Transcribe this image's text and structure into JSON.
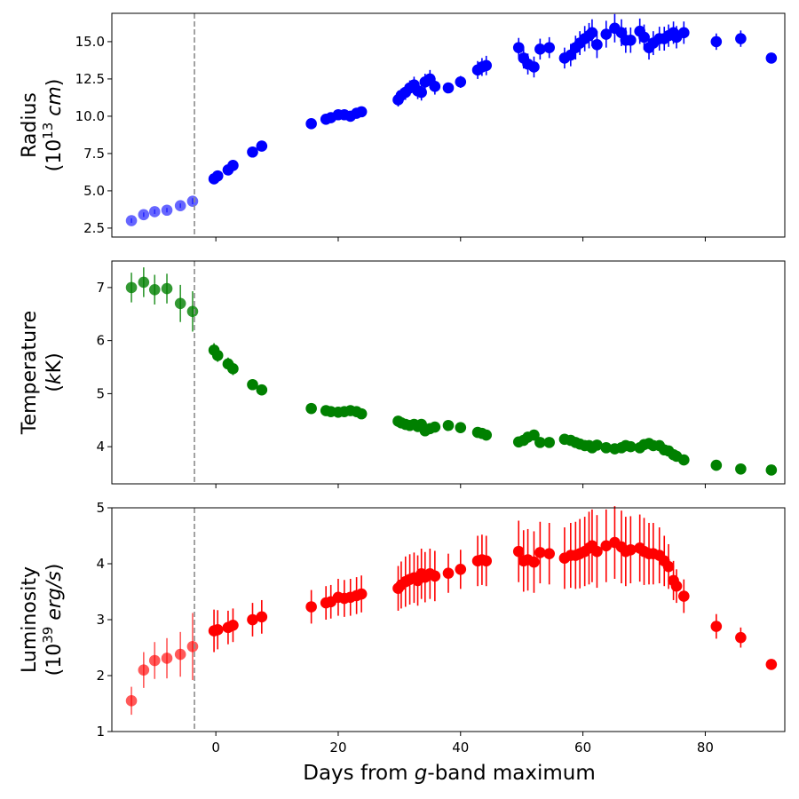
{
  "figure": {
    "xlabel_prefix": "Days from ",
    "xlabel_italic": "g",
    "xlabel_suffix": "-band maximum",
    "vline_x": -3.5,
    "xlim": [
      -17,
      93
    ],
    "xticks": [
      0,
      20,
      40,
      60,
      80
    ],
    "xtick_labels": [
      "0",
      "20",
      "40",
      "60",
      "80"
    ]
  },
  "chart_data": [
    {
      "type": "scatter",
      "name": "radius",
      "ylabel_line1": "Radius",
      "ylabel_line2_prefix": "(10",
      "ylabel_line2_exp": "13",
      "ylabel_line2_unit": "cm",
      "ylabel_line2_suffix": ")",
      "color": "#0000ff",
      "ylim": [
        1.9,
        16.9
      ],
      "yticks": [
        2.5,
        5.0,
        7.5,
        10.0,
        12.5,
        15.0
      ],
      "ytick_labels": [
        "2.5",
        "5.0",
        "7.5",
        "10.0",
        "12.5",
        "15.0"
      ],
      "pre_max_alpha": 0.6,
      "points": [
        [
          -13.8,
          3.0,
          0.15
        ],
        [
          -11.8,
          3.4,
          0.15
        ],
        [
          -10.0,
          3.6,
          0.15
        ],
        [
          -8.0,
          3.7,
          0.15
        ],
        [
          -5.8,
          4.0,
          0.15
        ],
        [
          -3.8,
          4.3,
          0.2
        ],
        [
          -0.3,
          5.8,
          0.2
        ],
        [
          0.3,
          6.0,
          0.2
        ],
        [
          2.0,
          6.4,
          0.25
        ],
        [
          2.8,
          6.7,
          0.25
        ],
        [
          6.0,
          7.6,
          0.25
        ],
        [
          7.5,
          8.0,
          0.25
        ],
        [
          15.6,
          9.5,
          0.3
        ],
        [
          18.0,
          9.8,
          0.3
        ],
        [
          18.8,
          9.9,
          0.3
        ],
        [
          20.0,
          10.1,
          0.35
        ],
        [
          21.0,
          10.1,
          0.35
        ],
        [
          22.0,
          10.0,
          0.35
        ],
        [
          23.0,
          10.2,
          0.35
        ],
        [
          23.8,
          10.3,
          0.35
        ],
        [
          29.8,
          11.1,
          0.45
        ],
        [
          30.3,
          11.4,
          0.45
        ],
        [
          31.0,
          11.6,
          0.5
        ],
        [
          31.7,
          11.9,
          0.5
        ],
        [
          32.4,
          12.1,
          0.55
        ],
        [
          33.0,
          11.7,
          0.55
        ],
        [
          33.6,
          11.6,
          0.55
        ],
        [
          34.2,
          12.3,
          0.55
        ],
        [
          35.0,
          12.5,
          0.6
        ],
        [
          35.8,
          12.0,
          0.55
        ],
        [
          38.0,
          11.9,
          0.35
        ],
        [
          40.0,
          12.3,
          0.4
        ],
        [
          42.8,
          13.1,
          0.6
        ],
        [
          43.5,
          13.3,
          0.6
        ],
        [
          44.2,
          13.4,
          0.65
        ],
        [
          49.5,
          14.6,
          0.65
        ],
        [
          50.3,
          13.9,
          0.7
        ],
        [
          51.0,
          13.5,
          0.7
        ],
        [
          52.0,
          13.3,
          0.7
        ],
        [
          53.0,
          14.5,
          0.7
        ],
        [
          54.5,
          14.6,
          0.7
        ],
        [
          57.0,
          13.9,
          0.7
        ],
        [
          58.0,
          14.1,
          0.75
        ],
        [
          58.8,
          14.6,
          0.8
        ],
        [
          59.5,
          14.9,
          0.8
        ],
        [
          60.3,
          15.2,
          0.85
        ],
        [
          61.0,
          15.4,
          0.85
        ],
        [
          61.5,
          15.6,
          0.9
        ],
        [
          62.3,
          14.8,
          0.9
        ],
        [
          63.8,
          15.5,
          0.9
        ],
        [
          65.2,
          15.9,
          0.95
        ],
        [
          66.3,
          15.6,
          0.9
        ],
        [
          67.0,
          15.1,
          0.85
        ],
        [
          67.8,
          15.1,
          0.85
        ],
        [
          69.3,
          15.7,
          0.85
        ],
        [
          70.0,
          15.3,
          0.85
        ],
        [
          70.8,
          14.6,
          0.8
        ],
        [
          71.5,
          14.9,
          0.8
        ],
        [
          72.5,
          15.2,
          0.8
        ],
        [
          73.3,
          15.2,
          0.8
        ],
        [
          74.0,
          15.4,
          0.75
        ],
        [
          74.8,
          15.6,
          0.75
        ],
        [
          75.3,
          15.3,
          0.75
        ],
        [
          76.5,
          15.6,
          0.75
        ],
        [
          81.8,
          15.0,
          0.55
        ],
        [
          85.8,
          15.2,
          0.55
        ],
        [
          90.8,
          13.9,
          0.3
        ]
      ]
    },
    {
      "type": "scatter",
      "name": "temperature",
      "ylabel_line1": "Temperature",
      "ylabel_line2_prefix": "(",
      "ylabel_line2_exp": "",
      "ylabel_line2_unit": "k",
      "ylabel_line2_suffix": "K)",
      "color": "#008000",
      "ylim": [
        3.3,
        7.5
      ],
      "yticks": [
        4,
        5,
        6,
        7
      ],
      "ytick_labels": [
        "4",
        "5",
        "6",
        "7"
      ],
      "pre_max_alpha": 0.8,
      "points": [
        [
          -13.8,
          7.0,
          0.28
        ],
        [
          -11.8,
          7.1,
          0.28
        ],
        [
          -10.0,
          6.96,
          0.28
        ],
        [
          -8.0,
          6.98,
          0.28
        ],
        [
          -5.8,
          6.7,
          0.35
        ],
        [
          -3.8,
          6.55,
          0.38
        ],
        [
          -0.3,
          5.82,
          0.13
        ],
        [
          0.3,
          5.72,
          0.12
        ],
        [
          2.0,
          5.56,
          0.12
        ],
        [
          2.8,
          5.47,
          0.12
        ],
        [
          6.0,
          5.17,
          0.1
        ],
        [
          7.5,
          5.07,
          0.1
        ],
        [
          15.6,
          4.72,
          0.06
        ],
        [
          18.0,
          4.68,
          0.06
        ],
        [
          18.8,
          4.66,
          0.06
        ],
        [
          20.0,
          4.65,
          0.06
        ],
        [
          21.0,
          4.66,
          0.06
        ],
        [
          22.0,
          4.68,
          0.06
        ],
        [
          23.0,
          4.66,
          0.06
        ],
        [
          23.8,
          4.62,
          0.06
        ],
        [
          29.8,
          4.48,
          0.06
        ],
        [
          30.3,
          4.45,
          0.06
        ],
        [
          31.0,
          4.42,
          0.06
        ],
        [
          31.7,
          4.4,
          0.06
        ],
        [
          32.4,
          4.42,
          0.06
        ],
        [
          33.0,
          4.38,
          0.06
        ],
        [
          33.6,
          4.42,
          0.06
        ],
        [
          34.2,
          4.3,
          0.06
        ],
        [
          35.0,
          4.34,
          0.06
        ],
        [
          35.8,
          4.37,
          0.06
        ],
        [
          38.0,
          4.4,
          0.05
        ],
        [
          40.0,
          4.36,
          0.05
        ],
        [
          42.8,
          4.27,
          0.05
        ],
        [
          43.5,
          4.25,
          0.05
        ],
        [
          44.2,
          4.22,
          0.05
        ],
        [
          49.5,
          4.09,
          0.05
        ],
        [
          50.3,
          4.12,
          0.05
        ],
        [
          51.0,
          4.18,
          0.05
        ],
        [
          52.0,
          4.22,
          0.05
        ],
        [
          53.0,
          4.08,
          0.05
        ],
        [
          54.5,
          4.08,
          0.05
        ],
        [
          57.0,
          4.14,
          0.05
        ],
        [
          58.0,
          4.12,
          0.05
        ],
        [
          58.8,
          4.08,
          0.05
        ],
        [
          59.5,
          4.05,
          0.05
        ],
        [
          60.3,
          4.02,
          0.05
        ],
        [
          61.0,
          4.02,
          0.05
        ],
        [
          61.5,
          3.98,
          0.05
        ],
        [
          62.3,
          4.03,
          0.05
        ],
        [
          63.8,
          3.98,
          0.05
        ],
        [
          65.2,
          3.96,
          0.05
        ],
        [
          66.3,
          3.98,
          0.05
        ],
        [
          67.0,
          4.02,
          0.05
        ],
        [
          67.8,
          4.0,
          0.05
        ],
        [
          69.3,
          3.98,
          0.05
        ],
        [
          70.0,
          4.04,
          0.05
        ],
        [
          70.8,
          4.06,
          0.05
        ],
        [
          71.5,
          4.02,
          0.05
        ],
        [
          72.5,
          4.02,
          0.05
        ],
        [
          73.3,
          3.94,
          0.05
        ],
        [
          74.0,
          3.92,
          0.05
        ],
        [
          74.8,
          3.85,
          0.05
        ],
        [
          75.3,
          3.82,
          0.05
        ],
        [
          76.5,
          3.75,
          0.05
        ],
        [
          81.8,
          3.65,
          0.04
        ],
        [
          85.8,
          3.58,
          0.04
        ],
        [
          90.8,
          3.56,
          0.04
        ]
      ]
    },
    {
      "type": "scatter",
      "name": "luminosity",
      "ylabel_line1": "Luminosity",
      "ylabel_line2_prefix": "(10",
      "ylabel_line2_exp": "39",
      "ylabel_line2_unit": "erg/s",
      "ylabel_line2_suffix": ")",
      "color": "#ff0000",
      "ylim": [
        1,
        5
      ],
      "yticks": [
        1,
        2,
        3,
        4,
        5
      ],
      "ytick_labels": [
        "1",
        "2",
        "3",
        "4",
        "5"
      ],
      "pre_max_alpha": 0.65,
      "points": [
        [
          -13.8,
          1.55,
          0.25
        ],
        [
          -11.8,
          2.1,
          0.32
        ],
        [
          -10.0,
          2.27,
          0.33
        ],
        [
          -8.0,
          2.31,
          0.36
        ],
        [
          -5.8,
          2.38,
          0.4
        ],
        [
          -3.8,
          2.52,
          0.6
        ],
        [
          -0.3,
          2.8,
          0.38
        ],
        [
          0.3,
          2.82,
          0.35
        ],
        [
          2.0,
          2.86,
          0.3
        ],
        [
          2.8,
          2.9,
          0.3
        ],
        [
          6.0,
          3.0,
          0.3
        ],
        [
          7.5,
          3.05,
          0.3
        ],
        [
          15.6,
          3.23,
          0.3
        ],
        [
          18.0,
          3.3,
          0.3
        ],
        [
          18.8,
          3.32,
          0.3
        ],
        [
          20.0,
          3.4,
          0.33
        ],
        [
          21.0,
          3.38,
          0.33
        ],
        [
          22.0,
          3.4,
          0.33
        ],
        [
          23.0,
          3.43,
          0.33
        ],
        [
          23.8,
          3.46,
          0.33
        ],
        [
          29.8,
          3.56,
          0.4
        ],
        [
          30.3,
          3.62,
          0.42
        ],
        [
          31.0,
          3.68,
          0.45
        ],
        [
          31.7,
          3.72,
          0.45
        ],
        [
          32.4,
          3.75,
          0.45
        ],
        [
          33.0,
          3.7,
          0.45
        ],
        [
          33.6,
          3.82,
          0.45
        ],
        [
          34.2,
          3.76,
          0.45
        ],
        [
          35.0,
          3.82,
          0.45
        ],
        [
          35.8,
          3.78,
          0.45
        ],
        [
          38.0,
          3.83,
          0.35
        ],
        [
          40.0,
          3.9,
          0.35
        ],
        [
          42.8,
          4.05,
          0.45
        ],
        [
          43.5,
          4.07,
          0.45
        ],
        [
          44.2,
          4.05,
          0.45
        ],
        [
          49.5,
          4.22,
          0.55
        ],
        [
          50.3,
          4.05,
          0.55
        ],
        [
          51.0,
          4.07,
          0.55
        ],
        [
          52.0,
          4.03,
          0.55
        ],
        [
          53.0,
          4.2,
          0.55
        ],
        [
          54.5,
          4.18,
          0.55
        ],
        [
          57.0,
          4.1,
          0.55
        ],
        [
          58.0,
          4.15,
          0.58
        ],
        [
          58.8,
          4.15,
          0.6
        ],
        [
          59.5,
          4.18,
          0.62
        ],
        [
          60.3,
          4.22,
          0.62
        ],
        [
          61.0,
          4.28,
          0.65
        ],
        [
          61.5,
          4.32,
          0.65
        ],
        [
          62.3,
          4.22,
          0.65
        ],
        [
          63.8,
          4.32,
          0.65
        ],
        [
          65.2,
          4.38,
          0.65
        ],
        [
          66.3,
          4.3,
          0.65
        ],
        [
          67.0,
          4.22,
          0.62
        ],
        [
          67.8,
          4.25,
          0.6
        ],
        [
          69.3,
          4.28,
          0.6
        ],
        [
          70.0,
          4.22,
          0.6
        ],
        [
          70.8,
          4.18,
          0.55
        ],
        [
          71.5,
          4.18,
          0.55
        ],
        [
          72.5,
          4.15,
          0.5
        ],
        [
          73.3,
          4.05,
          0.45
        ],
        [
          74.0,
          3.95,
          0.4
        ],
        [
          74.8,
          3.7,
          0.35
        ],
        [
          75.3,
          3.6,
          0.3
        ],
        [
          76.5,
          3.42,
          0.3
        ],
        [
          81.8,
          2.88,
          0.22
        ],
        [
          85.8,
          2.68,
          0.18
        ],
        [
          90.8,
          2.2,
          0.08
        ]
      ]
    }
  ]
}
